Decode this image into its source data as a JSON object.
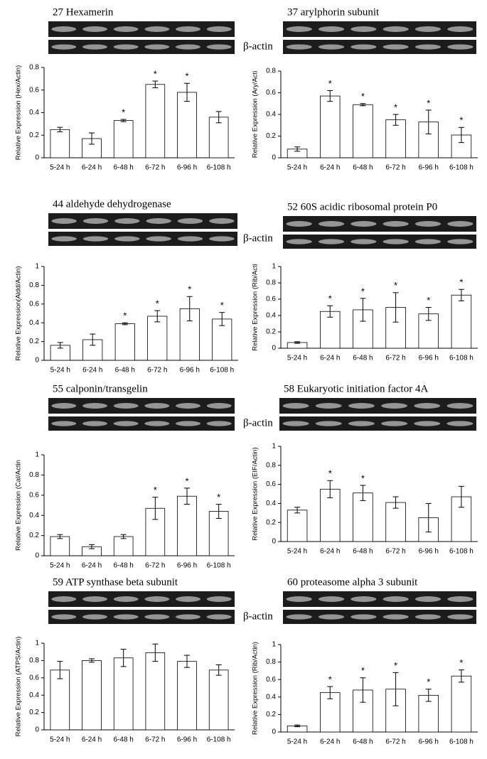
{
  "beta_actin_labels": [
    "β-actin",
    "β-actin",
    "β-actin",
    "β-actin"
  ],
  "chart_data": [
    {
      "type": "bar",
      "title": "27 Hexamerin",
      "y_label": "Relative Expression (Hex/Actin)",
      "categories": [
        "5-24 h",
        "6-24 h",
        "6-48 h",
        "6-72 h",
        "6-96 h",
        "6-108 h"
      ],
      "values": [
        0.25,
        0.17,
        0.33,
        0.65,
        0.58,
        0.36
      ],
      "errors": [
        0.02,
        0.05,
        0.01,
        0.03,
        0.08,
        0.05
      ],
      "significance": [
        null,
        null,
        "*",
        "*",
        "*",
        null
      ],
      "color": "#ffffff",
      "ylim": [
        0,
        0.8
      ],
      "yticks": [
        0,
        0.2,
        0.4,
        0.6,
        0.8
      ]
    },
    {
      "type": "bar",
      "title": "37 arylphorin subunit",
      "y_label": "Relative Expression (Ary/Acti",
      "categories": [
        "5-24 h",
        "6-24 h",
        "6-48 h",
        "6-72 h",
        "6-96 h",
        "6-108 h"
      ],
      "values": [
        0.08,
        0.57,
        0.49,
        0.35,
        0.33,
        0.21
      ],
      "errors": [
        0.02,
        0.05,
        0.01,
        0.05,
        0.11,
        0.07
      ],
      "significance": [
        null,
        "*",
        "*",
        "*",
        "*",
        "*"
      ],
      "color": "#ffffff",
      "ylim": [
        0,
        0.8
      ],
      "yticks": [
        0,
        0.2,
        0.4,
        0.6,
        0.8
      ]
    },
    {
      "type": "bar",
      "title": "44 aldehyde dehydrogenase",
      "y_label": "Relative Expression(Aldd/Actin)",
      "categories": [
        "5-24 h",
        "6-24 h",
        "6-48 h",
        "6-72 h",
        "6-96 h",
        "6-108 h"
      ],
      "values": [
        0.16,
        0.22,
        0.39,
        0.47,
        0.55,
        0.44
      ],
      "errors": [
        0.03,
        0.06,
        0.01,
        0.06,
        0.13,
        0.07
      ],
      "significance": [
        null,
        null,
        "*",
        "*",
        "*",
        "*"
      ],
      "color": "#ffffff",
      "ylim": [
        0,
        1
      ],
      "yticks": [
        0,
        0.2,
        0.4,
        0.6,
        0.8,
        1
      ]
    },
    {
      "type": "bar",
      "title": "52 60S acidic ribosomal protein P0",
      "y_label": "Relative Expression (Rib/Acti",
      "categories": [
        "5-24 h",
        "6-24 h",
        "6-48 h",
        "6-72 h",
        "6-96 h",
        "6-108 h"
      ],
      "values": [
        0.07,
        0.45,
        0.47,
        0.5,
        0.42,
        0.65
      ],
      "errors": [
        0.01,
        0.07,
        0.14,
        0.18,
        0.08,
        0.07
      ],
      "significance": [
        null,
        "*",
        "*",
        "*",
        "*",
        "*"
      ],
      "color": "#ffffff",
      "ylim": [
        0,
        1
      ],
      "yticks": [
        0,
        0.2,
        0.4,
        0.6,
        0.8,
        1
      ]
    },
    {
      "type": "bar",
      "title": "55 calponin/transgelin",
      "y_label": "Relative Expression (Cal/Actin",
      "categories": [
        "5-24 h",
        "6-24 h",
        "6-48 h",
        "6-72 h",
        "6-96 h",
        "6-108 h"
      ],
      "values": [
        0.19,
        0.09,
        0.19,
        0.47,
        0.59,
        0.44
      ],
      "errors": [
        0.02,
        0.02,
        0.02,
        0.11,
        0.08,
        0.07
      ],
      "significance": [
        null,
        null,
        null,
        "*",
        "*",
        "*"
      ],
      "color": "#ffffff",
      "ylim": [
        0,
        1
      ],
      "yticks": [
        0,
        0.2,
        0.4,
        0.6,
        0.8,
        1
      ]
    },
    {
      "type": "bar",
      "title": "58 Eukaryotic initiation factor 4A",
      "y_label": "Relative Expression (EIF/Actin)",
      "categories": [
        "5-24 h",
        "6-24 h",
        "6-48 h",
        "6-72 h",
        "6-96 h",
        "6-108 h"
      ],
      "values": [
        0.33,
        0.55,
        0.51,
        0.41,
        0.25,
        0.47
      ],
      "errors": [
        0.03,
        0.09,
        0.08,
        0.06,
        0.15,
        0.11
      ],
      "significance": [
        null,
        "*",
        "*",
        null,
        null,
        null
      ],
      "color": "#ffffff",
      "ylim": [
        0,
        1
      ],
      "yticks": [
        0,
        0.2,
        0.4,
        0.6,
        0.8,
        1
      ]
    },
    {
      "type": "bar",
      "title": "59 ATP synthase beta subunit",
      "y_label": "Relative Expression (ATPS/Actin)",
      "categories": [
        "5-24 h",
        "6-24 h",
        "6-48 h",
        "6-72 h",
        "6-96 h",
        "6-108 h"
      ],
      "values": [
        0.69,
        0.8,
        0.83,
        0.89,
        0.79,
        0.69
      ],
      "errors": [
        0.1,
        0.02,
        0.1,
        0.1,
        0.07,
        0.06
      ],
      "color": "#ffffff",
      "ylim": [
        0,
        1
      ],
      "yticks": [
        0,
        0.2,
        0.4,
        0.6,
        0.8,
        1
      ]
    },
    {
      "type": "bar",
      "title": "60 proteasome alpha 3 subunit",
      "y_label": "Relative Expression (Rib/Actin)",
      "categories": [
        "5-24 h",
        "6-24 h",
        "6-48 h",
        "6-72 h",
        "6-96 h",
        "6-108 h"
      ],
      "values": [
        0.07,
        0.45,
        0.48,
        0.49,
        0.42,
        0.64
      ],
      "errors": [
        0.01,
        0.07,
        0.14,
        0.19,
        0.07,
        0.07
      ],
      "significance": [
        null,
        "*",
        "*",
        "*",
        "*",
        "*"
      ],
      "color": "#ffffff",
      "ylim": [
        0,
        1
      ],
      "yticks": [
        0,
        0.2,
        0.4,
        0.6,
        0.8,
        1
      ]
    }
  ]
}
